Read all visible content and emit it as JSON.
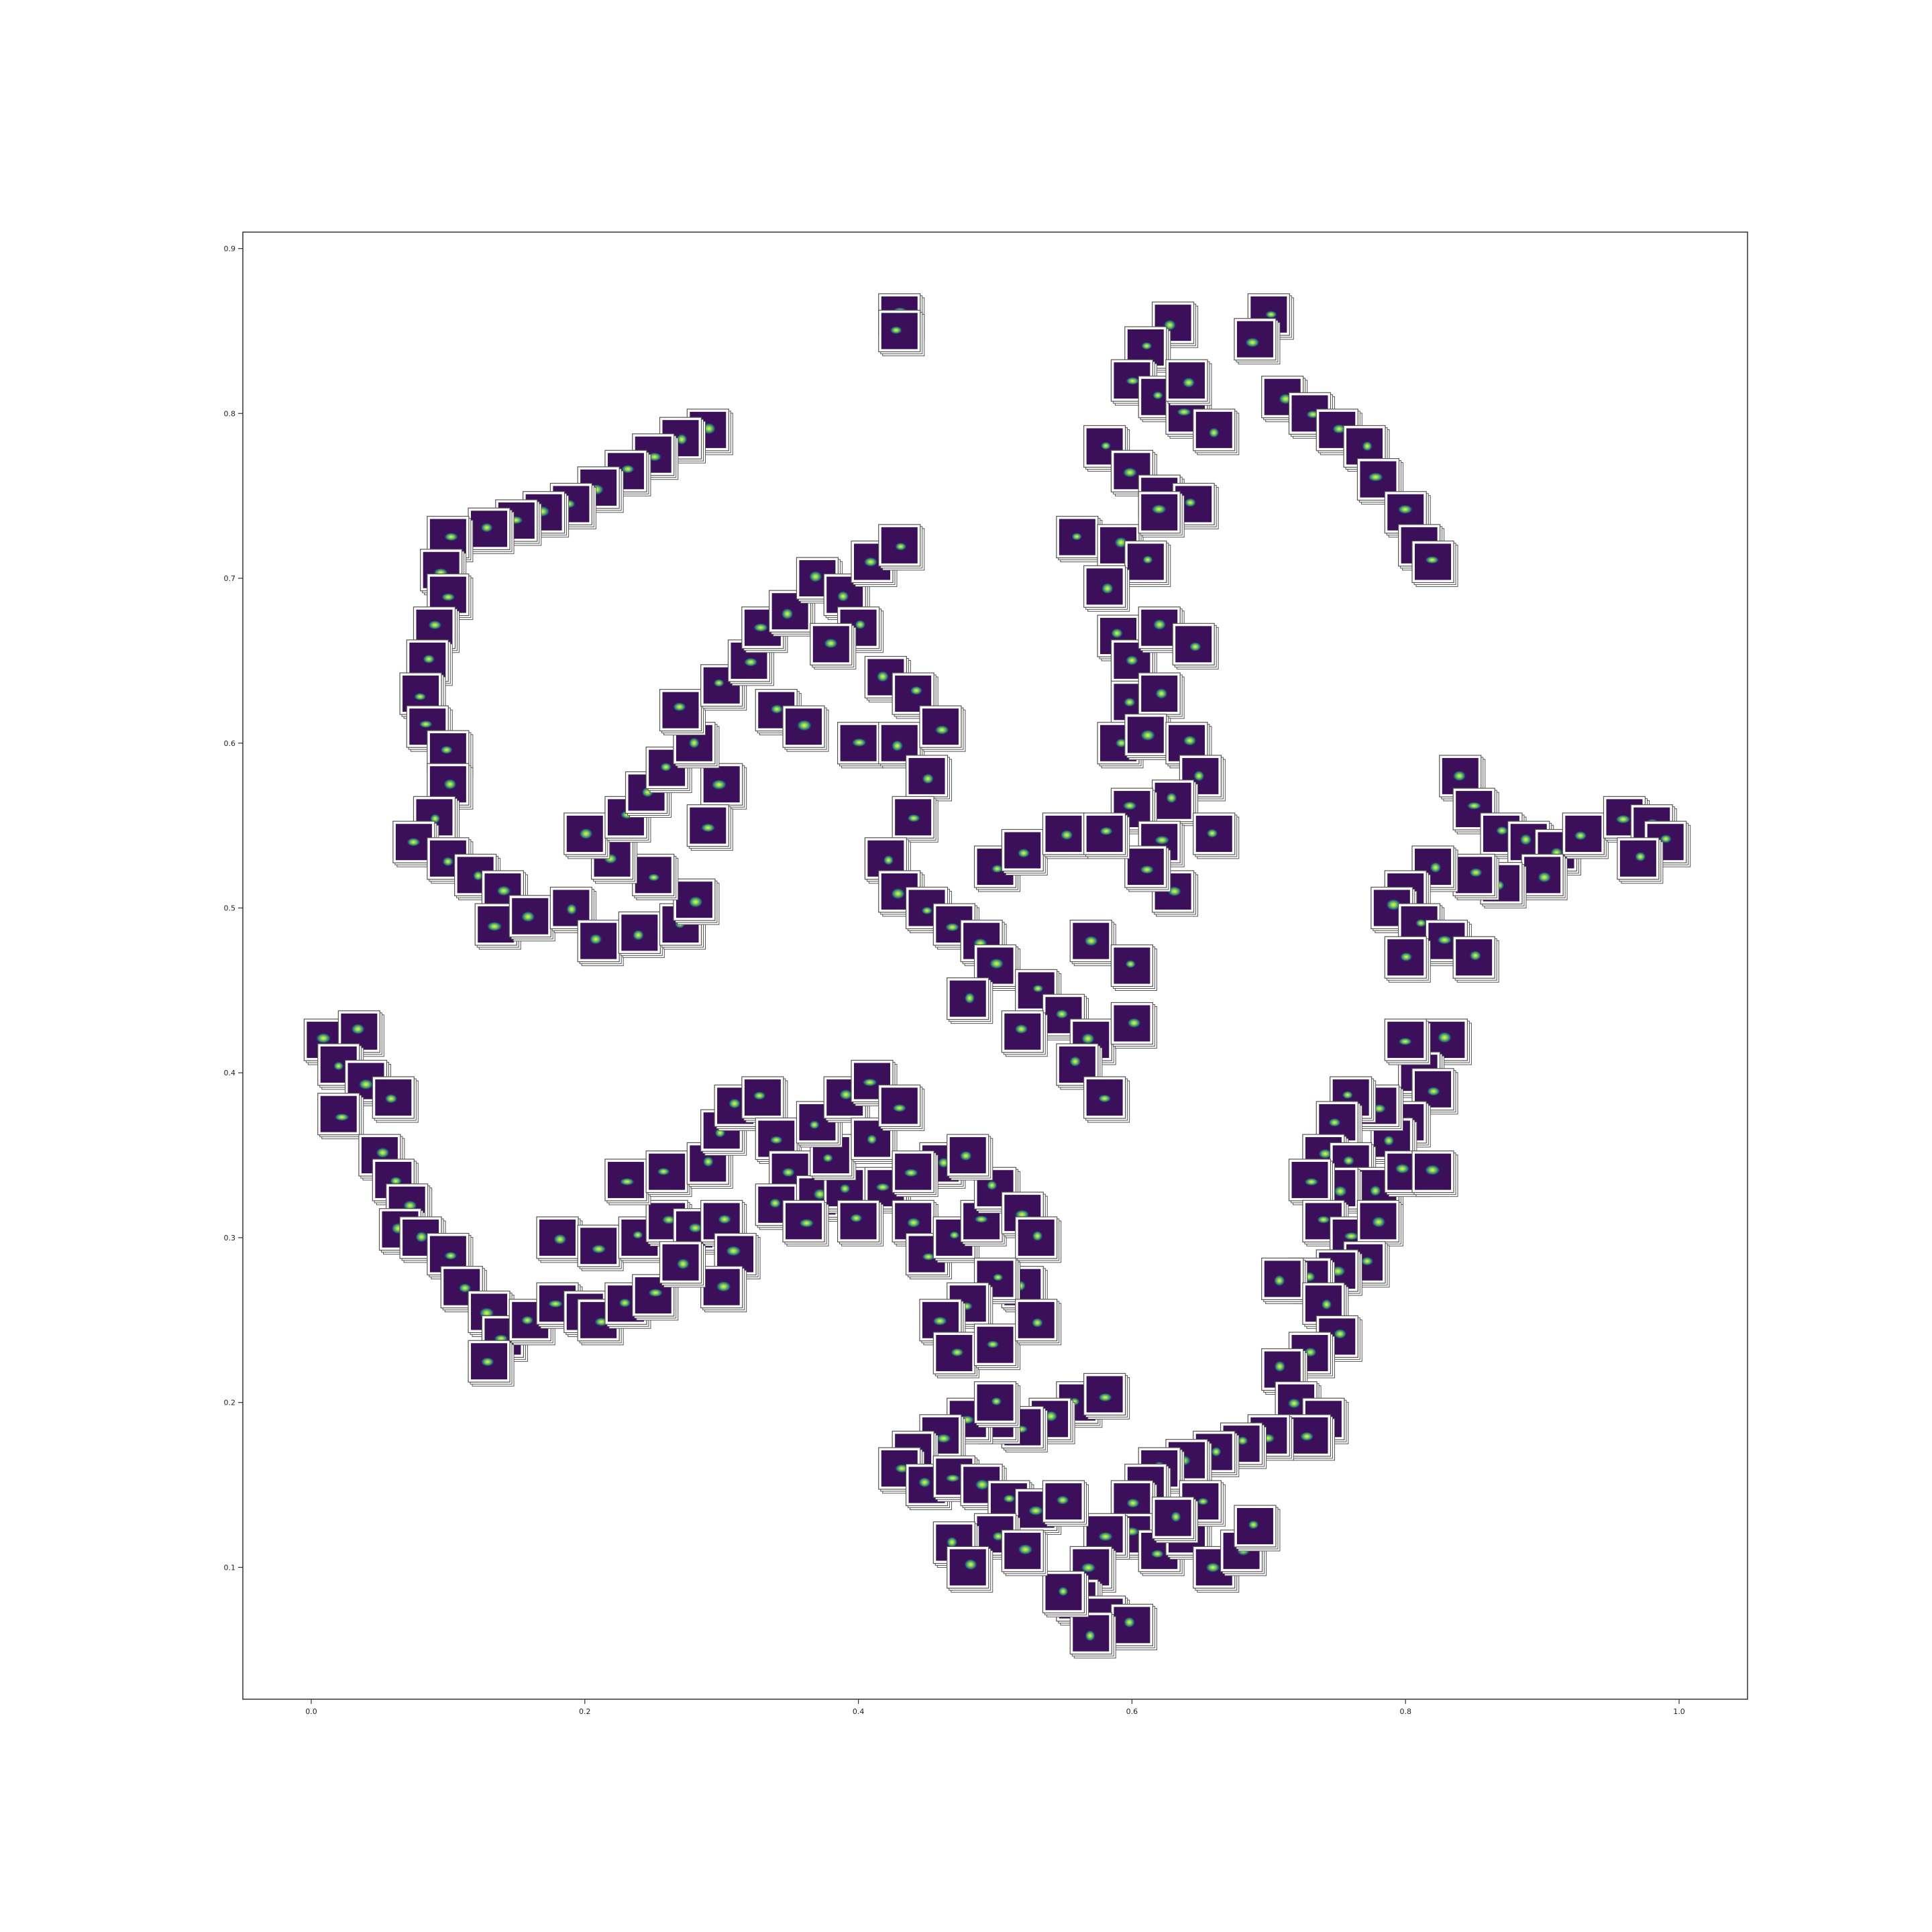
{
  "chart_data": {
    "type": "scatter",
    "title": "",
    "xlabel": "",
    "ylabel": "",
    "xlim": [
      -0.05,
      1.05
    ],
    "ylim": [
      0.02,
      0.91
    ],
    "grid": false,
    "marker": "image-thumbnail",
    "x_ticks": [
      "0.0",
      "0.2",
      "0.4",
      "0.6",
      "0.8",
      "1.0"
    ],
    "y_ticks": [
      "0.1",
      "0.2",
      "0.3",
      "0.4",
      "0.5",
      "0.6",
      "0.7",
      "0.8",
      "0.9"
    ],
    "x_tick_values": [
      0.0,
      0.2,
      0.4,
      0.6,
      0.8,
      1.0
    ],
    "y_tick_values": [
      0.1,
      0.2,
      0.3,
      0.4,
      0.5,
      0.6,
      0.7,
      0.8,
      0.9
    ],
    "colors": {
      "thumb_bg": "#3b0f5a",
      "thumb_frame": "#ffffff",
      "thumb_outline": "#555555",
      "spot": "#d6e33a"
    },
    "clusters": [
      {
        "name": "",
        "points": [
          [
            0.29,
            0.79
          ],
          [
            0.27,
            0.785
          ],
          [
            0.25,
            0.775
          ],
          [
            0.23,
            0.765
          ],
          [
            0.21,
            0.755
          ],
          [
            0.19,
            0.745
          ],
          [
            0.17,
            0.74
          ],
          [
            0.15,
            0.735
          ],
          [
            0.13,
            0.73
          ],
          [
            0.1,
            0.725
          ],
          [
            0.095,
            0.705
          ],
          [
            0.1,
            0.69
          ],
          [
            0.09,
            0.67
          ],
          [
            0.085,
            0.65
          ],
          [
            0.08,
            0.63
          ],
          [
            0.085,
            0.61
          ],
          [
            0.1,
            0.595
          ],
          [
            0.1,
            0.575
          ],
          [
            0.09,
            0.555
          ],
          [
            0.075,
            0.54
          ],
          [
            0.1,
            0.53
          ],
          [
            0.12,
            0.52
          ],
          [
            0.14,
            0.51
          ],
          [
            0.135,
            0.49
          ],
          [
            0.16,
            0.495
          ],
          [
            0.19,
            0.5
          ],
          [
            0.21,
            0.48
          ],
          [
            0.24,
            0.485
          ],
          [
            0.27,
            0.49
          ],
          [
            0.28,
            0.505
          ],
          [
            0.25,
            0.52
          ],
          [
            0.22,
            0.53
          ],
          [
            0.2,
            0.545
          ],
          [
            0.23,
            0.555
          ],
          [
            0.245,
            0.57
          ],
          [
            0.26,
            0.585
          ],
          [
            0.3,
            0.575
          ],
          [
            0.29,
            0.55
          ],
          [
            0.28,
            0.6
          ],
          [
            0.27,
            0.62
          ],
          [
            0.3,
            0.635
          ],
          [
            0.32,
            0.65
          ],
          [
            0.33,
            0.67
          ],
          [
            0.35,
            0.68
          ],
          [
            0.37,
            0.7
          ],
          [
            0.39,
            0.69
          ],
          [
            0.41,
            0.71
          ],
          [
            0.43,
            0.72
          ],
          [
            0.4,
            0.67
          ],
          [
            0.38,
            0.66
          ],
          [
            0.34,
            0.62
          ],
          [
            0.36,
            0.61
          ],
          [
            0.4,
            0.6
          ],
          [
            0.42,
            0.64
          ],
          [
            0.44,
            0.63
          ],
          [
            0.43,
            0.6
          ],
          [
            0.46,
            0.61
          ],
          [
            0.45,
            0.58
          ],
          [
            0.44,
            0.555
          ],
          [
            0.42,
            0.53
          ],
          [
            0.43,
            0.51
          ],
          [
            0.45,
            0.5
          ],
          [
            0.47,
            0.49
          ],
          [
            0.49,
            0.48
          ],
          [
            0.5,
            0.465
          ],
          [
            0.53,
            0.45
          ],
          [
            0.55,
            0.435
          ],
          [
            0.57,
            0.42
          ],
          [
            0.56,
            0.405
          ],
          [
            0.58,
            0.385
          ],
          [
            0.6,
            0.43
          ],
          [
            0.52,
            0.425
          ],
          [
            0.48,
            0.445
          ],
          [
            0.5,
            0.525
          ],
          [
            0.52,
            0.535
          ],
          [
            0.55,
            0.545
          ],
          [
            0.57,
            0.48
          ],
          [
            0.6,
            0.465
          ]
        ]
      },
      {
        "name": "",
        "points": [
          [
            0.7,
            0.86
          ],
          [
            0.69,
            0.845
          ],
          [
            0.71,
            0.81
          ],
          [
            0.73,
            0.8
          ],
          [
            0.75,
            0.79
          ],
          [
            0.77,
            0.78
          ],
          [
            0.78,
            0.76
          ],
          [
            0.8,
            0.74
          ],
          [
            0.81,
            0.72
          ],
          [
            0.82,
            0.71
          ],
          [
            0.63,
            0.855
          ],
          [
            0.61,
            0.84
          ],
          [
            0.6,
            0.82
          ],
          [
            0.62,
            0.81
          ],
          [
            0.64,
            0.8
          ],
          [
            0.66,
            0.79
          ],
          [
            0.58,
            0.78
          ],
          [
            0.6,
            0.765
          ],
          [
            0.62,
            0.75
          ],
          [
            0.645,
            0.745
          ],
          [
            0.56,
            0.725
          ],
          [
            0.59,
            0.72
          ],
          [
            0.61,
            0.71
          ],
          [
            0.58,
            0.695
          ],
          [
            0.59,
            0.665
          ],
          [
            0.6,
            0.65
          ],
          [
            0.62,
            0.67
          ],
          [
            0.645,
            0.66
          ],
          [
            0.6,
            0.625
          ],
          [
            0.62,
            0.63
          ],
          [
            0.59,
            0.6
          ],
          [
            0.61,
            0.605
          ],
          [
            0.64,
            0.6
          ],
          [
            0.65,
            0.58
          ],
          [
            0.63,
            0.565
          ],
          [
            0.6,
            0.56
          ],
          [
            0.62,
            0.54
          ],
          [
            0.66,
            0.545
          ],
          [
            0.63,
            0.51
          ],
          [
            0.61,
            0.525
          ],
          [
            0.58,
            0.545
          ],
          [
            0.62,
            0.74
          ],
          [
            0.64,
            0.82
          ]
        ]
      },
      {
        "name": "",
        "points": [
          [
            0.43,
            0.86
          ],
          [
            0.43,
            0.85
          ]
        ]
      },
      {
        "name": "",
        "points": [
          [
            0.84,
            0.58
          ],
          [
            0.85,
            0.56
          ],
          [
            0.87,
            0.545
          ],
          [
            0.89,
            0.54
          ],
          [
            0.91,
            0.535
          ],
          [
            0.93,
            0.545
          ],
          [
            0.96,
            0.555
          ],
          [
            0.98,
            0.55
          ],
          [
            0.99,
            0.54
          ],
          [
            0.97,
            0.53
          ],
          [
            0.9,
            0.52
          ],
          [
            0.87,
            0.515
          ],
          [
            0.85,
            0.52
          ],
          [
            0.82,
            0.525
          ],
          [
            0.8,
            0.51
          ],
          [
            0.79,
            0.5
          ],
          [
            0.81,
            0.49
          ],
          [
            0.83,
            0.48
          ],
          [
            0.85,
            0.47
          ],
          [
            0.8,
            0.47
          ]
        ]
      },
      {
        "name": "",
        "points": [
          [
            0.01,
            0.42
          ],
          [
            0.035,
            0.425
          ],
          [
            0.02,
            0.405
          ],
          [
            0.04,
            0.395
          ],
          [
            0.06,
            0.385
          ],
          [
            0.02,
            0.375
          ],
          [
            0.05,
            0.35
          ],
          [
            0.06,
            0.335
          ],
          [
            0.07,
            0.32
          ],
          [
            0.065,
            0.305
          ],
          [
            0.08,
            0.3
          ],
          [
            0.1,
            0.29
          ],
          [
            0.11,
            0.27
          ],
          [
            0.13,
            0.255
          ],
          [
            0.14,
            0.24
          ],
          [
            0.13,
            0.225
          ],
          [
            0.16,
            0.25
          ],
          [
            0.18,
            0.26
          ],
          [
            0.2,
            0.255
          ],
          [
            0.21,
            0.25
          ],
          [
            0.23,
            0.26
          ],
          [
            0.25,
            0.265
          ],
          [
            0.18,
            0.3
          ],
          [
            0.21,
            0.295
          ],
          [
            0.24,
            0.3
          ],
          [
            0.26,
            0.31
          ],
          [
            0.28,
            0.305
          ],
          [
            0.3,
            0.31
          ],
          [
            0.31,
            0.29
          ],
          [
            0.3,
            0.27
          ],
          [
            0.27,
            0.285
          ],
          [
            0.23,
            0.335
          ],
          [
            0.26,
            0.34
          ],
          [
            0.29,
            0.345
          ],
          [
            0.3,
            0.365
          ],
          [
            0.31,
            0.38
          ],
          [
            0.33,
            0.385
          ],
          [
            0.34,
            0.36
          ],
          [
            0.35,
            0.34
          ],
          [
            0.34,
            0.32
          ],
          [
            0.37,
            0.325
          ],
          [
            0.39,
            0.33
          ],
          [
            0.38,
            0.35
          ],
          [
            0.37,
            0.37
          ],
          [
            0.39,
            0.385
          ],
          [
            0.41,
            0.395
          ],
          [
            0.41,
            0.36
          ],
          [
            0.43,
            0.38
          ],
          [
            0.42,
            0.33
          ],
          [
            0.44,
            0.31
          ],
          [
            0.45,
            0.29
          ],
          [
            0.47,
            0.3
          ],
          [
            0.49,
            0.31
          ],
          [
            0.5,
            0.33
          ],
          [
            0.52,
            0.315
          ],
          [
            0.53,
            0.3
          ],
          [
            0.52,
            0.27
          ],
          [
            0.5,
            0.275
          ],
          [
            0.48,
            0.26
          ],
          [
            0.46,
            0.25
          ],
          [
            0.47,
            0.23
          ],
          [
            0.5,
            0.235
          ],
          [
            0.53,
            0.25
          ],
          [
            0.46,
            0.345
          ],
          [
            0.48,
            0.35
          ],
          [
            0.44,
            0.34
          ],
          [
            0.4,
            0.31
          ],
          [
            0.36,
            0.31
          ]
        ]
      },
      {
        "name": "",
        "points": [
          [
            0.83,
            0.42
          ],
          [
            0.81,
            0.4
          ],
          [
            0.8,
            0.42
          ],
          [
            0.82,
            0.39
          ],
          [
            0.8,
            0.37
          ],
          [
            0.79,
            0.36
          ],
          [
            0.78,
            0.38
          ],
          [
            0.76,
            0.385
          ],
          [
            0.75,
            0.37
          ],
          [
            0.74,
            0.35
          ],
          [
            0.76,
            0.345
          ],
          [
            0.78,
            0.33
          ],
          [
            0.8,
            0.34
          ],
          [
            0.82,
            0.34
          ],
          [
            0.75,
            0.33
          ],
          [
            0.73,
            0.335
          ],
          [
            0.74,
            0.31
          ],
          [
            0.76,
            0.3
          ],
          [
            0.78,
            0.31
          ],
          [
            0.77,
            0.285
          ],
          [
            0.75,
            0.28
          ],
          [
            0.73,
            0.275
          ],
          [
            0.71,
            0.275
          ],
          [
            0.74,
            0.26
          ],
          [
            0.75,
            0.24
          ],
          [
            0.73,
            0.23
          ],
          [
            0.71,
            0.22
          ],
          [
            0.72,
            0.2
          ],
          [
            0.74,
            0.19
          ],
          [
            0.73,
            0.18
          ],
          [
            0.7,
            0.18
          ],
          [
            0.68,
            0.175
          ],
          [
            0.66,
            0.17
          ],
          [
            0.64,
            0.165
          ],
          [
            0.62,
            0.16
          ],
          [
            0.61,
            0.15
          ],
          [
            0.6,
            0.14
          ],
          [
            0.6,
            0.12
          ],
          [
            0.62,
            0.11
          ],
          [
            0.64,
            0.12
          ],
          [
            0.66,
            0.1
          ],
          [
            0.68,
            0.11
          ],
          [
            0.69,
            0.125
          ],
          [
            0.65,
            0.14
          ],
          [
            0.63,
            0.13
          ],
          [
            0.58,
            0.12
          ],
          [
            0.57,
            0.1
          ],
          [
            0.56,
            0.08
          ],
          [
            0.58,
            0.07
          ],
          [
            0.6,
            0.065
          ],
          [
            0.57,
            0.06
          ],
          [
            0.55,
            0.085
          ],
          [
            0.56,
            0.2
          ],
          [
            0.58,
            0.205
          ],
          [
            0.54,
            0.19
          ],
          [
            0.52,
            0.185
          ],
          [
            0.5,
            0.19
          ],
          [
            0.48,
            0.19
          ],
          [
            0.46,
            0.18
          ],
          [
            0.44,
            0.17
          ],
          [
            0.43,
            0.16
          ],
          [
            0.45,
            0.15
          ],
          [
            0.47,
            0.155
          ],
          [
            0.49,
            0.15
          ],
          [
            0.51,
            0.14
          ],
          [
            0.53,
            0.135
          ],
          [
            0.55,
            0.14
          ],
          [
            0.5,
            0.12
          ],
          [
            0.47,
            0.115
          ],
          [
            0.48,
            0.1
          ],
          [
            0.52,
            0.11
          ],
          [
            0.5,
            0.2
          ]
        ]
      }
    ]
  }
}
